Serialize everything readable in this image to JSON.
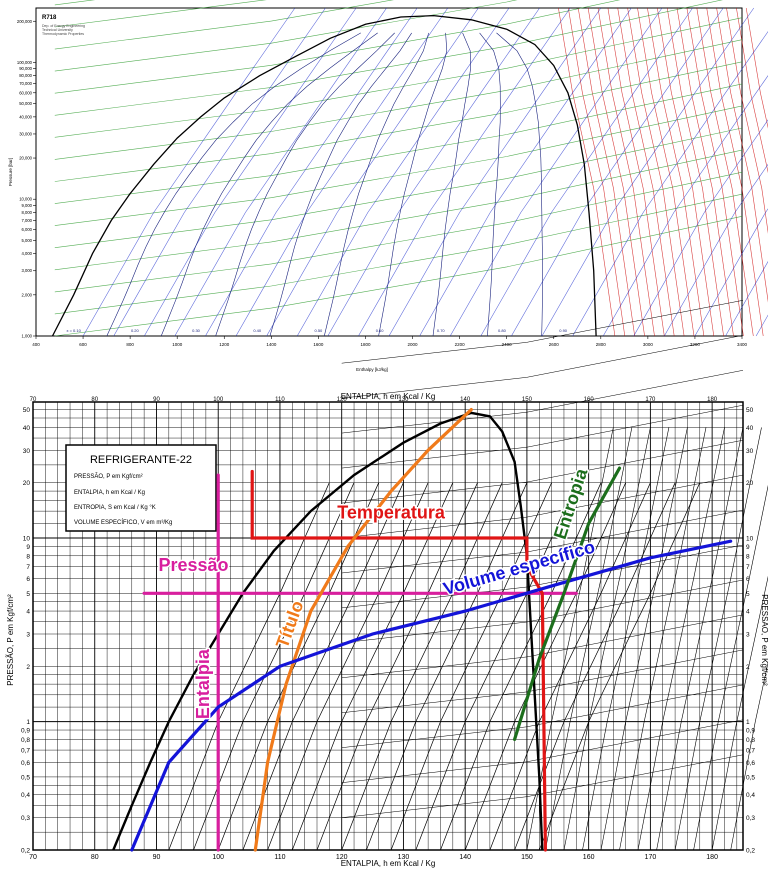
{
  "chart_data": [
    {
      "type": "line",
      "title": "R718",
      "subtitle_lines": [
        "Dep. of Energy Engineering",
        "Technical University",
        "Thermodynamic Properties"
      ],
      "xlabel": "Enthalpy [kJ/kg]",
      "ylabel": "Pressure [bar]",
      "xlim": [
        400,
        3400
      ],
      "ylim": [
        1000,
        250000
      ],
      "yscale": "log",
      "x_ticks": [
        400,
        600,
        800,
        1000,
        1200,
        1400,
        1600,
        1800,
        2000,
        2200,
        2400,
        2600,
        2800,
        3000,
        3200,
        3400
      ],
      "y_ticks": [
        {
          "v": 1000,
          "label": "1,000"
        },
        {
          "v": 2000,
          "label": "2,000"
        },
        {
          "v": 3000,
          "label": "3,000"
        },
        {
          "v": 4000,
          "label": "4,000"
        },
        {
          "v": 5000,
          "label": "5,000"
        },
        {
          "v": 6000,
          "label": "6,000"
        },
        {
          "v": 7000,
          "label": "7,000"
        },
        {
          "v": 8000,
          "label": "8,000"
        },
        {
          "v": 9000,
          "label": "9,000"
        },
        {
          "v": 10000,
          "label": "10,000"
        },
        {
          "v": 20000,
          "label": "20,000"
        },
        {
          "v": 30000,
          "label": "30,000"
        },
        {
          "v": 40000,
          "label": "40,000"
        },
        {
          "v": 50000,
          "label": "50,000"
        },
        {
          "v": 60000,
          "label": "60,000"
        },
        {
          "v": 70000,
          "label": "70,000"
        },
        {
          "v": 80000,
          "label": "80,000"
        },
        {
          "v": 90000,
          "label": "90,000"
        },
        {
          "v": 100000,
          "label": "100,000"
        },
        {
          "v": 200000,
          "label": "200,000"
        }
      ],
      "saturation_dome": {
        "name": "saturation",
        "points": [
          [
            470,
            1000
          ],
          [
            560,
            2000
          ],
          [
            640,
            4000
          ],
          [
            720,
            7000
          ],
          [
            800,
            11000
          ],
          [
            900,
            18000
          ],
          [
            1000,
            28000
          ],
          [
            1100,
            40000
          ],
          [
            1200,
            55000
          ],
          [
            1350,
            80000
          ],
          [
            1500,
            110000
          ],
          [
            1650,
            150000
          ],
          [
            1800,
            190000
          ],
          [
            1950,
            215000
          ],
          [
            2090,
            220000
          ],
          [
            2250,
            205000
          ],
          [
            2400,
            175000
          ],
          [
            2520,
            135000
          ],
          [
            2600,
            95000
          ],
          [
            2660,
            60000
          ],
          [
            2700,
            35000
          ],
          [
            2730,
            18000
          ],
          [
            2750,
            8000
          ],
          [
            2770,
            3000
          ],
          [
            2780,
            1000
          ]
        ]
      },
      "quality_labels": [
        "x = 0.10",
        "0.20",
        "0.30",
        "0.40",
        "0.50",
        "0.60",
        "0.70",
        "0.80",
        "0.90"
      ],
      "colors": {
        "temperature": "#cc0000",
        "entropy": "#2a9a2a",
        "volume": "#1c2dcc",
        "dome": "#000000"
      }
    },
    {
      "type": "line",
      "title": "REFRIGERANTE-22",
      "legend_box": [
        "PRESSÃO, P em Kgf/cm²",
        "ENTALPIA, h em Kcal / Kg",
        "ENTROPIA, S em Kcal / Kg °K",
        "VOLUME ESPECÍFICO, V em m³/Kg"
      ],
      "xlabel": "ENTALPIA, h em  Kcal / Kg",
      "xlabel_top": "ENTALPIA, h em  Kcal / Kg",
      "ylabel": "PRESSÃO, P em Kgf/cm²",
      "xlim": [
        70,
        185
      ],
      "ylim": [
        0.2,
        55
      ],
      "yscale": "log",
      "x_ticks": [
        70,
        80,
        90,
        100,
        110,
        120,
        130,
        140,
        150,
        160,
        170,
        180
      ],
      "y_ticks": [
        {
          "v": 0.2,
          "label": "0,2"
        },
        {
          "v": 0.3,
          "label": "0,3"
        },
        {
          "v": 0.4,
          "label": "0,4"
        },
        {
          "v": 0.5,
          "label": "0,5"
        },
        {
          "v": 0.6,
          "label": "0,6"
        },
        {
          "v": 0.7,
          "label": "0,7"
        },
        {
          "v": 0.8,
          "label": "0,8"
        },
        {
          "v": 0.9,
          "label": "0,9"
        },
        {
          "v": 1,
          "label": "1"
        },
        {
          "v": 2,
          "label": "2"
        },
        {
          "v": 3,
          "label": "3"
        },
        {
          "v": 4,
          "label": "4"
        },
        {
          "v": 5,
          "label": "5"
        },
        {
          "v": 6,
          "label": "6"
        },
        {
          "v": 7,
          "label": "7"
        },
        {
          "v": 8,
          "label": "8"
        },
        {
          "v": 9,
          "label": "9"
        },
        {
          "v": 10,
          "label": "10"
        },
        {
          "v": 20,
          "label": "20"
        },
        {
          "v": 30,
          "label": "30"
        },
        {
          "v": 40,
          "label": "40"
        },
        {
          "v": 50,
          "label": "50"
        }
      ],
      "saturation_dome": {
        "points": [
          [
            83,
            0.2
          ],
          [
            86,
            0.35
          ],
          [
            89,
            0.6
          ],
          [
            92,
            1.0
          ],
          [
            96,
            1.8
          ],
          [
            100,
            3
          ],
          [
            104,
            5
          ],
          [
            109,
            8.5
          ],
          [
            115,
            14
          ],
          [
            122,
            22
          ],
          [
            130,
            33
          ],
          [
            136,
            42
          ],
          [
            141,
            48
          ],
          [
            144,
            46
          ],
          [
            146,
            38
          ],
          [
            148,
            26
          ],
          [
            149,
            15
          ],
          [
            150,
            8
          ],
          [
            150.5,
            4
          ],
          [
            151,
            2
          ],
          [
            151.5,
            1
          ],
          [
            152,
            0.5
          ],
          [
            152.5,
            0.2
          ]
        ]
      },
      "annotations": [
        {
          "name": "Pressão",
          "color": "#d81f9e",
          "points": [
            [
              88,
              5
            ],
            [
              158,
              5
            ]
          ],
          "label_at": [
            96,
            6.6
          ],
          "angle": 0
        },
        {
          "name": "Entalpia",
          "color": "#d81f9e",
          "points": [
            [
              100,
              0.2
            ],
            [
              100,
              22
            ]
          ],
          "label_at": [
            98.5,
            1.6
          ],
          "angle": -90
        },
        {
          "name": "Temperatura",
          "color": "#e01515",
          "points": [
            [
              105.5,
              23
            ],
            [
              105.5,
              10
            ],
            [
              150,
              10
            ],
            [
              150,
              7
            ],
            [
              152.5,
              5
            ],
            [
              153,
              0.2
            ]
          ],
          "label_at": [
            128,
            12.8
          ],
          "angle": 0
        },
        {
          "name": "Título",
          "color": "#f07a1a",
          "points": [
            [
              106,
              0.2
            ],
            [
              108,
              0.6
            ],
            [
              111,
              1.6
            ],
            [
              115,
              4
            ],
            [
              121,
              9
            ],
            [
              128,
              18
            ],
            [
              134,
              30
            ],
            [
              141,
              50
            ]
          ],
          "label_at": [
            112.5,
            3.3
          ],
          "angle": -70
        },
        {
          "name": "Volume específico",
          "color": "#1414d8",
          "points": [
            [
              86,
              0.2
            ],
            [
              92,
              0.6
            ],
            [
              100,
              1.2
            ],
            [
              110,
              2
            ],
            [
              125,
              3
            ],
            [
              140,
              4
            ],
            [
              155,
              5.6
            ],
            [
              170,
              7.8
            ],
            [
              183,
              9.6
            ]
          ],
          "label_at": [
            149,
            6.4
          ],
          "angle": -16
        },
        {
          "name": "Entropia",
          "color": "#1c6e1c",
          "points": [
            [
              148,
              0.8
            ],
            [
              152,
              2.2
            ],
            [
              156,
              5
            ],
            [
              160,
              12
            ],
            [
              165,
              24
            ]
          ],
          "label_at": [
            158,
            15
          ],
          "angle": -72
        }
      ]
    }
  ]
}
